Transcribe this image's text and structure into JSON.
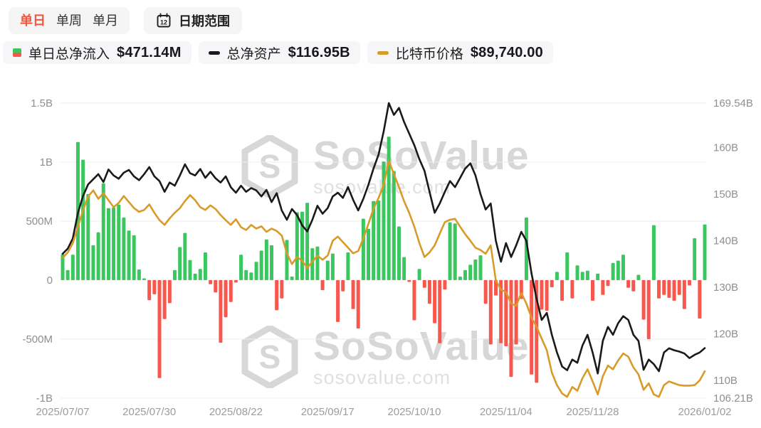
{
  "toolbar": {
    "tabs": [
      {
        "label": "单日",
        "active": true
      },
      {
        "label": "单周",
        "active": false
      },
      {
        "label": "单月",
        "active": false
      }
    ],
    "date_range_label": "日期范围",
    "calendar_icon_day": "12"
  },
  "legend": {
    "items": [
      {
        "label": "单日总净流入",
        "value": "$471.14M",
        "swatch_top": "#3cc65f",
        "swatch_bottom": "#f7574d"
      },
      {
        "label": "总净资产",
        "value": "$116.95B",
        "color": "#1a1a1a"
      },
      {
        "label": "比特币价格",
        "value": "$89,740.00",
        "color": "#d89b28"
      }
    ]
  },
  "watermark": {
    "brand": "SoSoValue",
    "domain": "sosovalue.com",
    "logo_letter": "S"
  },
  "chart_data": {
    "type": "combo",
    "title": "",
    "grid": true,
    "legend_position": "top",
    "colors": {
      "flow_positive": "#3cc65f",
      "flow_negative": "#f7574d",
      "nav_line": "#1a1a1a",
      "btc_line": "#d89b28",
      "gridline": "#ececec",
      "axis_text": "#8e8e93",
      "x_axis_text": "#9c9ca1"
    },
    "left_axis": {
      "unit": "USD",
      "min": -1000,
      "max": 1500,
      "ticks": [
        {
          "v": 1500,
          "label": "1.5B"
        },
        {
          "v": 1000,
          "label": "1B"
        },
        {
          "v": 500,
          "label": "500M"
        },
        {
          "v": 0,
          "label": "0"
        },
        {
          "v": -500,
          "label": "-500M"
        },
        {
          "v": -1000,
          "label": "-1B"
        }
      ]
    },
    "right_axis": {
      "unit": "USD",
      "min": 106.21,
      "max": 169.54,
      "tick_values": [
        169.54,
        160,
        150,
        140,
        130,
        120,
        110,
        106.21
      ],
      "tick_labels": [
        "169.54B",
        "160B",
        "150B",
        "140B",
        "130B",
        "120B",
        "110B",
        "106.21B"
      ]
    },
    "btc_axis": {
      "min_usd": 85108,
      "max_usd": 135772
    },
    "x_axis": {
      "tick_indices": [
        0,
        17,
        34,
        52,
        69,
        87,
        104,
        126
      ],
      "tick_labels": [
        "2025/07/07",
        "2025/07/30",
        "2025/08/22",
        "2025/09/17",
        "2025/10/10",
        "2025/11/04",
        "2025/11/28",
        "2026/01/02"
      ]
    },
    "bar_series": {
      "name": "单日总净流入",
      "unit": "M USD",
      "latest": 471.14,
      "values": [
        220,
        85,
        215,
        1170,
        1020,
        730,
        295,
        405,
        820,
        610,
        615,
        640,
        530,
        420,
        380,
        90,
        15,
        -170,
        -120,
        -830,
        -330,
        -195,
        85,
        280,
        400,
        170,
        55,
        95,
        235,
        -35,
        -105,
        -530,
        -315,
        -185,
        -20,
        215,
        85,
        65,
        155,
        250,
        345,
        295,
        -255,
        -155,
        340,
        30,
        575,
        580,
        655,
        270,
        285,
        -85,
        165,
        225,
        -355,
        -95,
        235,
        -245,
        -410,
        520,
        435,
        670,
        675,
        1005,
        1215,
        925,
        455,
        195,
        -15,
        -340,
        95,
        -65,
        -200,
        -365,
        -535,
        -80,
        490,
        480,
        30,
        85,
        130,
        175,
        210,
        -200,
        -545,
        -130,
        -535,
        -560,
        -820,
        -545,
        -160,
        530,
        -800,
        -870,
        -250,
        -260,
        -60,
        70,
        -175,
        235,
        -155,
        125,
        70,
        80,
        -175,
        55,
        -125,
        -50,
        145,
        165,
        215,
        -65,
        -95,
        45,
        -335,
        -500,
        465,
        -155,
        -125,
        -150,
        -175,
        -125,
        -245,
        -45,
        355,
        -325,
        471.14
      ]
    },
    "nav_series": {
      "name": "总净资产",
      "unit": "B USD",
      "latest": 116.95,
      "values": [
        137.2,
        138.3,
        140.5,
        146.0,
        149.6,
        152.1,
        153.2,
        154.3,
        152.6,
        155.3,
        154.0,
        153.3,
        154.6,
        155.2,
        153.8,
        153.0,
        154.3,
        155.8,
        153.8,
        152.8,
        150.5,
        152.5,
        151.8,
        154.0,
        156.4,
        154.5,
        154.0,
        155.4,
        153.5,
        154.8,
        153.4,
        152.5,
        153.8,
        151.5,
        150.3,
        151.8,
        150.5,
        151.3,
        150.8,
        149.5,
        150.9,
        148.3,
        150.2,
        146.5,
        144.5,
        146.8,
        145.5,
        143.3,
        142.0,
        144.5,
        147.5,
        145.8,
        147.0,
        149.5,
        150.3,
        149.2,
        151.5,
        148.8,
        146.5,
        149.0,
        152.0,
        155.5,
        158.5,
        163.5,
        169.54,
        167.0,
        168.5,
        165.5,
        163.0,
        160.5,
        157.5,
        155.0,
        150.5,
        146.0,
        148.0,
        150.5,
        152.8,
        151.5,
        153.5,
        155.5,
        156.6,
        154.0,
        150.0,
        146.7,
        148.0,
        140.0,
        135.5,
        139.5,
        136.5,
        139.0,
        141.9,
        140.0,
        133.0,
        127.5,
        123.0,
        124.5,
        119.8,
        116.0,
        113.0,
        112.2,
        114.5,
        113.8,
        117.5,
        119.8,
        116.0,
        111.5,
        118.5,
        121.5,
        119.8,
        122.3,
        123.8,
        123.0,
        119.8,
        118.5,
        112.3,
        114.5,
        113.5,
        112.0,
        116.0,
        116.9,
        116.5,
        116.2,
        115.8,
        114.8,
        115.5,
        116.0,
        116.95
      ]
    },
    "btc_series": {
      "name": "比特币价格",
      "unit": "USD",
      "latest": 89740.0,
      "values": [
        109180,
        110140,
        111740,
        114540,
        117340,
        119740,
        120780,
        119340,
        120300,
        119100,
        117900,
        118620,
        119820,
        118780,
        117740,
        117100,
        117420,
        118380,
        116940,
        115660,
        114860,
        115980,
        116940,
        117740,
        118940,
        119980,
        119100,
        117900,
        117420,
        118220,
        117580,
        116540,
        115660,
        114860,
        115820,
        114460,
        113980,
        114860,
        114220,
        114620,
        113660,
        114220,
        113820,
        113020,
        109980,
        108140,
        109340,
        108700,
        107500,
        108540,
        109580,
        108860,
        109580,
        112140,
        112860,
        111900,
        110940,
        109980,
        110380,
        112540,
        115020,
        117660,
        119500,
        121740,
        125900,
        123580,
        121340,
        118940,
        116940,
        114540,
        111740,
        109340,
        110140,
        111340,
        113340,
        115340,
        115740,
        115900,
        114540,
        113260,
        112140,
        110940,
        110540,
        109900,
        111340,
        105340,
        103740,
        103340,
        101340,
        100940,
        103180,
        101340,
        98940,
        97340,
        95340,
        93340,
        89500,
        87340,
        85900,
        85340,
        87020,
        86380,
        88540,
        90060,
        87980,
        85740,
        88860,
        90700,
        90060,
        91580,
        92780,
        92220,
        90380,
        89180,
        86540,
        87660,
        85740,
        85340,
        87340,
        87980,
        87660,
        87340,
        87260,
        87260,
        87340,
        88140,
        89740
      ]
    }
  }
}
